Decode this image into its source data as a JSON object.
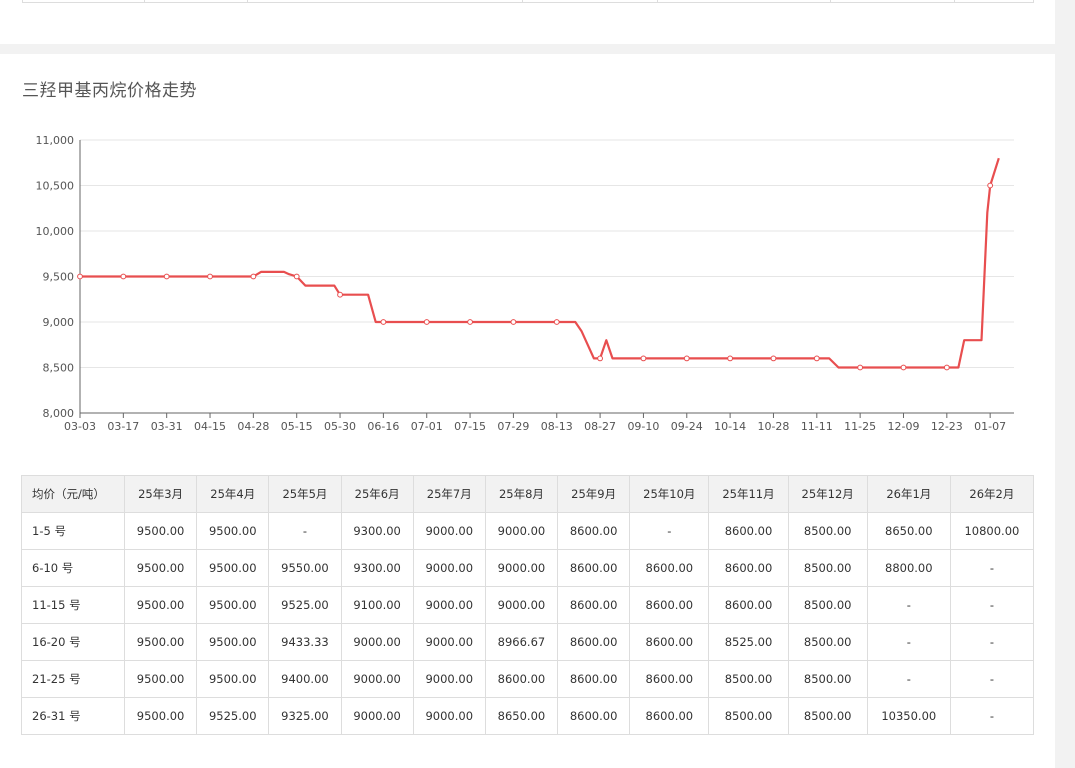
{
  "title": "三羟甲基丙烷价格走势",
  "colors": {
    "line": "#e84e4f",
    "grid": "#e6e6e6",
    "axis": "#666666",
    "header_bg": "#f2f2f2"
  },
  "chart_data": {
    "type": "line",
    "title": "三羟甲基丙烷价格走势",
    "xlabel": "",
    "ylabel": "",
    "ylim": [
      8000,
      11000
    ],
    "y_ticks": [
      "8,000",
      "8,500",
      "9,000",
      "9,500",
      "10,000",
      "10,500",
      "11,000"
    ],
    "y_tick_values": [
      8000,
      8500,
      9000,
      9500,
      10000,
      10500,
      11000
    ],
    "x_tick_labels": [
      "03-03",
      "03-17",
      "03-31",
      "04-15",
      "04-28",
      "05-15",
      "05-30",
      "06-16",
      "07-01",
      "07-15",
      "07-29",
      "08-13",
      "08-27",
      "09-10",
      "09-24",
      "10-14",
      "10-28",
      "11-11",
      "11-25",
      "12-09",
      "12-23",
      "01-07"
    ],
    "grid": true,
    "legend": "none",
    "series": [
      {
        "x": [
          "03-03",
          "03-17",
          "03-31",
          "04-15",
          "04-28",
          "05-01",
          "05-10",
          "05-12",
          "05-15",
          "05-18",
          "05-28",
          "05-30",
          "06-10",
          "06-13",
          "06-16",
          "07-01",
          "07-15",
          "07-29",
          "08-13",
          "08-19",
          "08-21",
          "08-25",
          "08-27",
          "08-29",
          "08-31",
          "09-10",
          "09-24",
          "10-14",
          "10-28",
          "11-11",
          "11-15",
          "11-18",
          "11-25",
          "12-09",
          "12-23",
          "12-27",
          "12-29",
          "01-01",
          "01-04",
          "01-06",
          "01-07",
          "01-10"
        ],
        "values": [
          9500,
          9500,
          9500,
          9500,
          9500,
          9550,
          9550,
          9525,
          9500,
          9400,
          9400,
          9300,
          9300,
          9000,
          9000,
          9000,
          9000,
          9000,
          9000,
          9000,
          8900,
          8600,
          8600,
          8800,
          8600,
          8600,
          8600,
          8600,
          8600,
          8600,
          8600,
          8500,
          8500,
          8500,
          8500,
          8500,
          8800,
          8800,
          8800,
          10200,
          10500,
          10800
        ]
      }
    ]
  },
  "table": {
    "headers": [
      "均价（元/吨）",
      "25年3月",
      "25年4月",
      "25年5月",
      "25年6月",
      "25年7月",
      "25年8月",
      "25年9月",
      "25年10月",
      "25年11月",
      "25年12月",
      "26年1月",
      "26年2月"
    ],
    "rows": [
      [
        "1-5 号",
        "9500.00",
        "9500.00",
        "-",
        "9300.00",
        "9000.00",
        "9000.00",
        "8600.00",
        "-",
        "8600.00",
        "8500.00",
        "8650.00",
        "10800.00"
      ],
      [
        "6-10 号",
        "9500.00",
        "9500.00",
        "9550.00",
        "9300.00",
        "9000.00",
        "9000.00",
        "8600.00",
        "8600.00",
        "8600.00",
        "8500.00",
        "8800.00",
        "-"
      ],
      [
        "11-15 号",
        "9500.00",
        "9500.00",
        "9525.00",
        "9100.00",
        "9000.00",
        "9000.00",
        "8600.00",
        "8600.00",
        "8600.00",
        "8500.00",
        "-",
        "-"
      ],
      [
        "16-20 号",
        "9500.00",
        "9500.00",
        "9433.33",
        "9000.00",
        "9000.00",
        "8966.67",
        "8600.00",
        "8600.00",
        "8525.00",
        "8500.00",
        "-",
        "-"
      ],
      [
        "21-25 号",
        "9500.00",
        "9500.00",
        "9400.00",
        "9000.00",
        "9000.00",
        "8600.00",
        "8600.00",
        "8600.00",
        "8500.00",
        "8500.00",
        "-",
        "-"
      ],
      [
        "26-31 号",
        "9500.00",
        "9525.00",
        "9325.00",
        "9000.00",
        "9000.00",
        "8650.00",
        "8600.00",
        "8600.00",
        "8500.00",
        "8500.00",
        "10350.00",
        "-"
      ]
    ]
  }
}
